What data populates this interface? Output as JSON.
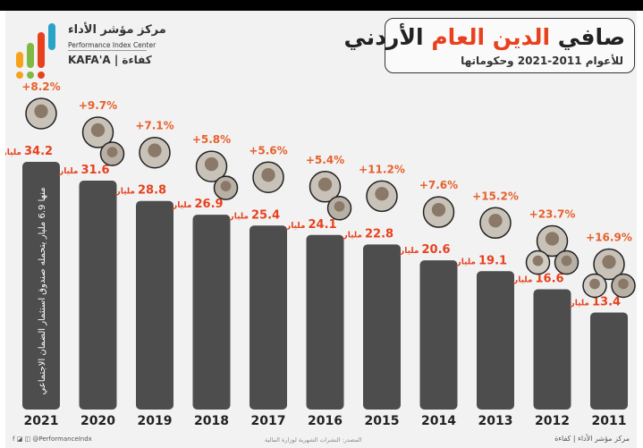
{
  "header": {
    "logo_ar": "مركز مؤشر الأداء",
    "logo_en": "Performance Index Center",
    "logo_kafa": "KAFA'A | كفاءة",
    "title_part1": "صافي ",
    "title_highlight": "الدين العام",
    "title_part2": " الأردني",
    "subtitle": "للأعوام 2011-2021 وحكوماتها"
  },
  "footer": {
    "social": "@PerformanceIndx",
    "source": "المصدر: النشرات الشهرية لوزارة المالية",
    "brand": "مركز مؤشر الأداء | كفاءة"
  },
  "colors": {
    "bar": "#4d4d4d",
    "pct": "#e8602c",
    "value": "#e8411e",
    "unit": "#e8411e",
    "year": "#222222"
  },
  "chart_data": {
    "type": "bar",
    "categories": [
      "2021",
      "2020",
      "2019",
      "2018",
      "2017",
      "2016",
      "2015",
      "2014",
      "2013",
      "2012",
      "2011"
    ],
    "values": [
      34.2,
      31.6,
      28.8,
      26.9,
      25.4,
      24.1,
      22.8,
      20.6,
      19.1,
      16.6,
      13.4
    ],
    "value_labels": [
      "34.2",
      "31.6",
      "28.8",
      "26.9",
      "25.4",
      "24.1",
      "22.8",
      "20.6",
      "19.1",
      "16.6",
      "13.4"
    ],
    "unit": "مليار",
    "growth_labels": [
      "+8.2%",
      "+9.7%",
      "+7.1%",
      "+5.8%",
      "+5.6%",
      "+5.4%",
      "+11.2%",
      "+7.6%",
      "+15.2%",
      "+23.7%",
      "+16.9%"
    ],
    "pm_portraits": [
      1,
      2,
      1,
      2,
      1,
      2,
      1,
      1,
      1,
      3,
      3
    ],
    "annotation": "منها 6.9 مليار يتحمله صندوق استثمار الضمان الاجتماعي",
    "ylim": [
      0,
      40
    ],
    "title": "صافي الدين العام الأردني",
    "subtitle": "للأعوام 2011-2021 وحكوماتها",
    "legend": "none",
    "grid": false
  }
}
